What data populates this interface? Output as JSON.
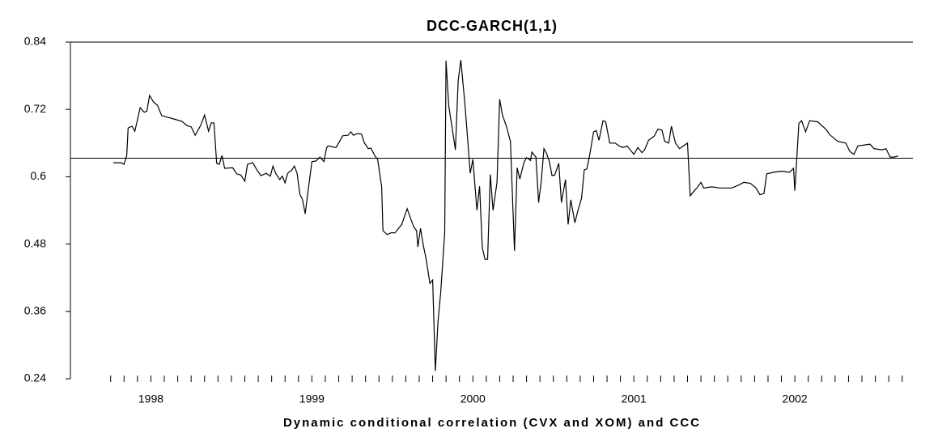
{
  "chart_data": {
    "type": "line",
    "title": "DCC-GARCH(1,1)",
    "x_label": "Dynamic conditional correlation (CVX and XOM) and CCC",
    "xlim": [
      0,
      62.8
    ],
    "xticks": [
      3,
      4,
      5,
      6,
      7,
      8,
      9,
      10,
      11,
      12,
      13,
      14,
      15,
      16,
      17,
      18,
      19,
      20,
      21,
      22,
      23,
      24,
      25,
      26,
      27,
      28,
      29,
      30,
      31,
      32,
      33,
      34,
      35,
      36,
      37,
      38,
      39,
      40,
      41,
      42,
      43,
      44,
      45,
      46,
      47,
      48,
      49,
      50,
      51,
      52,
      53,
      54,
      55,
      56,
      57,
      58,
      59,
      60,
      61,
      62
    ],
    "xlabels": [
      {
        "value": 6,
        "label": "1998"
      },
      {
        "value": 18,
        "label": "1999"
      },
      {
        "value": 30,
        "label": "2000"
      },
      {
        "value": 42,
        "label": "2001"
      },
      {
        "value": 54,
        "label": "2002"
      }
    ],
    "ylim": [
      0.24,
      0.84
    ],
    "yticks": [
      0.24,
      0.36,
      0.48,
      0.6,
      0.72,
      0.84
    ],
    "reference_line": 0.633,
    "x": [
      3.2,
      3.8,
      4.0,
      4.2,
      4.3,
      4.6,
      4.8,
      5.2,
      5.5,
      5.7,
      5.9,
      6.2,
      6.5,
      6.8,
      7.1,
      7.7,
      8.3,
      8.7,
      9.0,
      9.3,
      9.7,
      10.0,
      10.3,
      10.5,
      10.7,
      10.9,
      11.1,
      11.3,
      11.5,
      12.1,
      12.4,
      12.7,
      13.0,
      13.2,
      13.6,
      13.9,
      14.2,
      14.6,
      14.9,
      15.1,
      15.3,
      15.6,
      15.8,
      16.0,
      16.2,
      16.5,
      16.7,
      16.9,
      17.1,
      17.3,
      17.5,
      17.7,
      18.0,
      18.3,
      18.6,
      18.9,
      19.1,
      19.2,
      19.8,
      20.3,
      20.7,
      20.9,
      21.1,
      21.4,
      21.7,
      21.9,
      22.2,
      22.4,
      22.7,
      22.9,
      23.2,
      23.3,
      23.6,
      23.9,
      24.2,
      24.7,
      25.1,
      25.4,
      25.6,
      25.8,
      25.9,
      26.1,
      26.3,
      26.5,
      26.8,
      27.0,
      27.2,
      27.4,
      27.6,
      27.9,
      28.0,
      28.2,
      28.5,
      28.7,
      28.9,
      29.1,
      29.4,
      29.6,
      29.8,
      30.0,
      30.3,
      30.5,
      30.7,
      30.9,
      31.1,
      31.3,
      31.5,
      31.8,
      32.0,
      32.2,
      32.5,
      32.8,
      33.1,
      33.3,
      33.5,
      33.8,
      34.0,
      34.3,
      34.4,
      34.7,
      34.9,
      35.1,
      35.3,
      35.5,
      35.7,
      35.9,
      36.1,
      36.4,
      36.6,
      36.9,
      37.1,
      37.3,
      37.6,
      37.8,
      38.1,
      38.3,
      38.5,
      38.7,
      39.0,
      39.2,
      39.4,
      39.7,
      39.9,
      40.2,
      40.6,
      40.9,
      41.2,
      41.5,
      42.0,
      42.3,
      42.6,
      42.8,
      43.1,
      43.5,
      43.8,
      44.1,
      44.3,
      44.6,
      44.8,
      45.1,
      45.4,
      45.7,
      46.0,
      46.2,
      46.5,
      46.7,
      47.0,
      47.2,
      47.8,
      48.4,
      49.3,
      49.8,
      50.2,
      50.7,
      51.1,
      51.4,
      51.7,
      51.9,
      52.4,
      53.0,
      53.6,
      53.9,
      54.0,
      54.3,
      54.5,
      54.8,
      55.1,
      55.7,
      56.3,
      56.6,
      57.2,
      57.8,
      58.1,
      58.4,
      58.7,
      59.3,
      59.6,
      59.9,
      60.5,
      60.8,
      61.1,
      61.4,
      61.7
    ],
    "series": [
      {
        "color": "#000000",
        "values": [
          0.625,
          0.625,
          0.622,
          0.638,
          0.687,
          0.69,
          0.681,
          0.723,
          0.715,
          0.717,
          0.745,
          0.733,
          0.727,
          0.709,
          0.707,
          0.703,
          0.699,
          0.691,
          0.689,
          0.674,
          0.691,
          0.71,
          0.681,
          0.696,
          0.696,
          0.624,
          0.622,
          0.638,
          0.615,
          0.616,
          0.605,
          0.603,
          0.592,
          0.622,
          0.625,
          0.612,
          0.602,
          0.606,
          0.601,
          0.619,
          0.606,
          0.595,
          0.601,
          0.589,
          0.606,
          0.612,
          0.619,
          0.606,
          0.569,
          0.559,
          0.534,
          0.572,
          0.627,
          0.628,
          0.635,
          0.627,
          0.652,
          0.655,
          0.652,
          0.673,
          0.674,
          0.68,
          0.674,
          0.677,
          0.676,
          0.661,
          0.65,
          0.651,
          0.637,
          0.631,
          0.582,
          0.504,
          0.497,
          0.5,
          0.5,
          0.515,
          0.543,
          0.523,
          0.51,
          0.504,
          0.475,
          0.508,
          0.478,
          0.455,
          0.41,
          0.416,
          0.254,
          0.342,
          0.393,
          0.5,
          0.807,
          0.726,
          0.68,
          0.648,
          0.771,
          0.808,
          0.732,
          0.67,
          0.606,
          0.631,
          0.54,
          0.583,
          0.474,
          0.453,
          0.453,
          0.604,
          0.54,
          0.59,
          0.738,
          0.71,
          0.69,
          0.663,
          0.468,
          0.616,
          0.596,
          0.625,
          0.634,
          0.629,
          0.644,
          0.635,
          0.554,
          0.592,
          0.65,
          0.641,
          0.627,
          0.602,
          0.603,
          0.624,
          0.554,
          0.595,
          0.515,
          0.559,
          0.518,
          0.537,
          0.562,
          0.612,
          0.614,
          0.638,
          0.68,
          0.682,
          0.665,
          0.7,
          0.698,
          0.66,
          0.66,
          0.655,
          0.652,
          0.655,
          0.64,
          0.652,
          0.643,
          0.648,
          0.665,
          0.672,
          0.685,
          0.683,
          0.663,
          0.66,
          0.69,
          0.66,
          0.65,
          0.655,
          0.66,
          0.566,
          0.575,
          0.58,
          0.59,
          0.58,
          0.582,
          0.58,
          0.58,
          0.585,
          0.59,
          0.588,
          0.58,
          0.568,
          0.57,
          0.605,
          0.608,
          0.61,
          0.608,
          0.615,
          0.575,
          0.695,
          0.7,
          0.68,
          0.7,
          0.698,
          0.685,
          0.675,
          0.663,
          0.66,
          0.645,
          0.64,
          0.655,
          0.657,
          0.658,
          0.65,
          0.648,
          0.65,
          0.635,
          0.635,
          0.637
        ]
      }
    ]
  }
}
